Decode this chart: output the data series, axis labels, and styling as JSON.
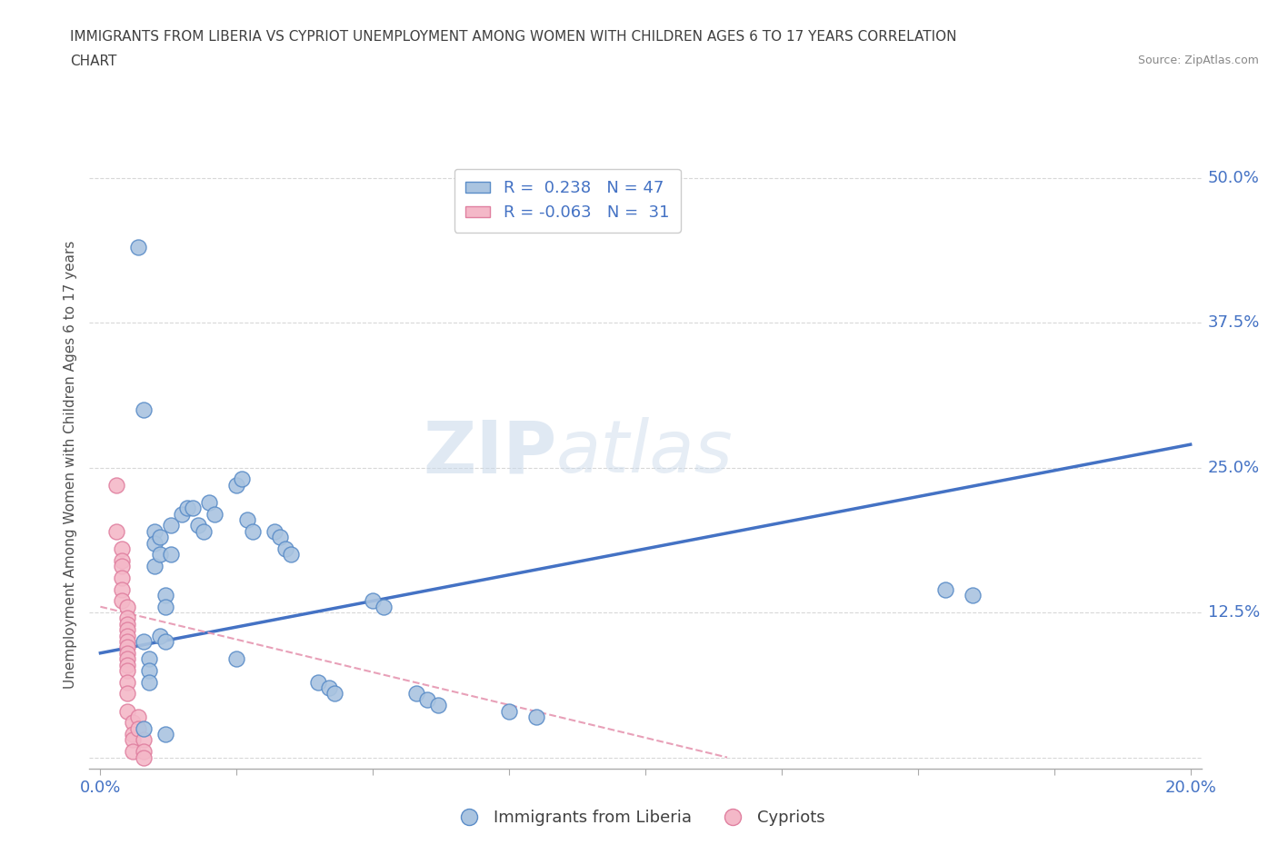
{
  "title_line1": "IMMIGRANTS FROM LIBERIA VS CYPRIOT UNEMPLOYMENT AMONG WOMEN WITH CHILDREN AGES 6 TO 17 YEARS CORRELATION",
  "title_line2": "CHART",
  "source": "Source: ZipAtlas.com",
  "ylabel": "Unemployment Among Women with Children Ages 6 to 17 years",
  "xlim": [
    -0.002,
    0.202
  ],
  "ylim": [
    -0.01,
    0.515
  ],
  "yticks": [
    0.0,
    0.125,
    0.25,
    0.375,
    0.5
  ],
  "yticklabels": [
    "",
    "12.5%",
    "25.0%",
    "37.5%",
    "50.0%"
  ],
  "xticks": [
    0.0,
    0.025,
    0.05,
    0.075,
    0.1,
    0.125,
    0.15,
    0.175,
    0.2
  ],
  "blue_color": "#aac4e0",
  "pink_color": "#f4b8c8",
  "blue_edge_color": "#5b8dc8",
  "pink_edge_color": "#e080a0",
  "blue_line_color": "#4472c4",
  "pink_line_color": "#e8a0b8",
  "watermark": "ZIPatlas",
  "legend_R1": "R =  0.238   N = 47",
  "legend_R2": "R = -0.063   N =  31",
  "blue_scatter_x": [
    0.007,
    0.008,
    0.008,
    0.009,
    0.009,
    0.009,
    0.01,
    0.01,
    0.01,
    0.011,
    0.011,
    0.011,
    0.012,
    0.012,
    0.012,
    0.013,
    0.013,
    0.015,
    0.016,
    0.017,
    0.018,
    0.019,
    0.02,
    0.021,
    0.025,
    0.026,
    0.027,
    0.028,
    0.032,
    0.033,
    0.034,
    0.035,
    0.04,
    0.042,
    0.043,
    0.05,
    0.052,
    0.058,
    0.06,
    0.062,
    0.075,
    0.08,
    0.008,
    0.012,
    0.025,
    0.155,
    0.16
  ],
  "blue_scatter_y": [
    0.44,
    0.3,
    0.1,
    0.085,
    0.075,
    0.065,
    0.195,
    0.185,
    0.165,
    0.19,
    0.175,
    0.105,
    0.14,
    0.13,
    0.1,
    0.2,
    0.175,
    0.21,
    0.215,
    0.215,
    0.2,
    0.195,
    0.22,
    0.21,
    0.235,
    0.24,
    0.205,
    0.195,
    0.195,
    0.19,
    0.18,
    0.175,
    0.065,
    0.06,
    0.055,
    0.135,
    0.13,
    0.055,
    0.05,
    0.045,
    0.04,
    0.035,
    0.025,
    0.02,
    0.085,
    0.145,
    0.14
  ],
  "pink_scatter_x": [
    0.003,
    0.003,
    0.004,
    0.004,
    0.004,
    0.004,
    0.004,
    0.004,
    0.005,
    0.005,
    0.005,
    0.005,
    0.005,
    0.005,
    0.005,
    0.005,
    0.005,
    0.005,
    0.005,
    0.005,
    0.005,
    0.005,
    0.006,
    0.006,
    0.006,
    0.006,
    0.007,
    0.007,
    0.008,
    0.008,
    0.008
  ],
  "pink_scatter_y": [
    0.235,
    0.195,
    0.18,
    0.17,
    0.165,
    0.155,
    0.145,
    0.135,
    0.13,
    0.12,
    0.115,
    0.11,
    0.105,
    0.1,
    0.095,
    0.09,
    0.085,
    0.08,
    0.075,
    0.065,
    0.055,
    0.04,
    0.03,
    0.02,
    0.015,
    0.005,
    0.035,
    0.025,
    0.015,
    0.005,
    0.0
  ],
  "blue_trend_x": [
    0.0,
    0.2
  ],
  "blue_trend_y": [
    0.09,
    0.27
  ],
  "pink_trend_x": [
    0.0,
    0.115
  ],
  "pink_trend_y": [
    0.13,
    0.0
  ],
  "grid_color": "#d8d8d8",
  "background_color": "#ffffff",
  "title_color": "#404040",
  "axis_label_color": "#505050",
  "tick_label_color": "#4472c4"
}
